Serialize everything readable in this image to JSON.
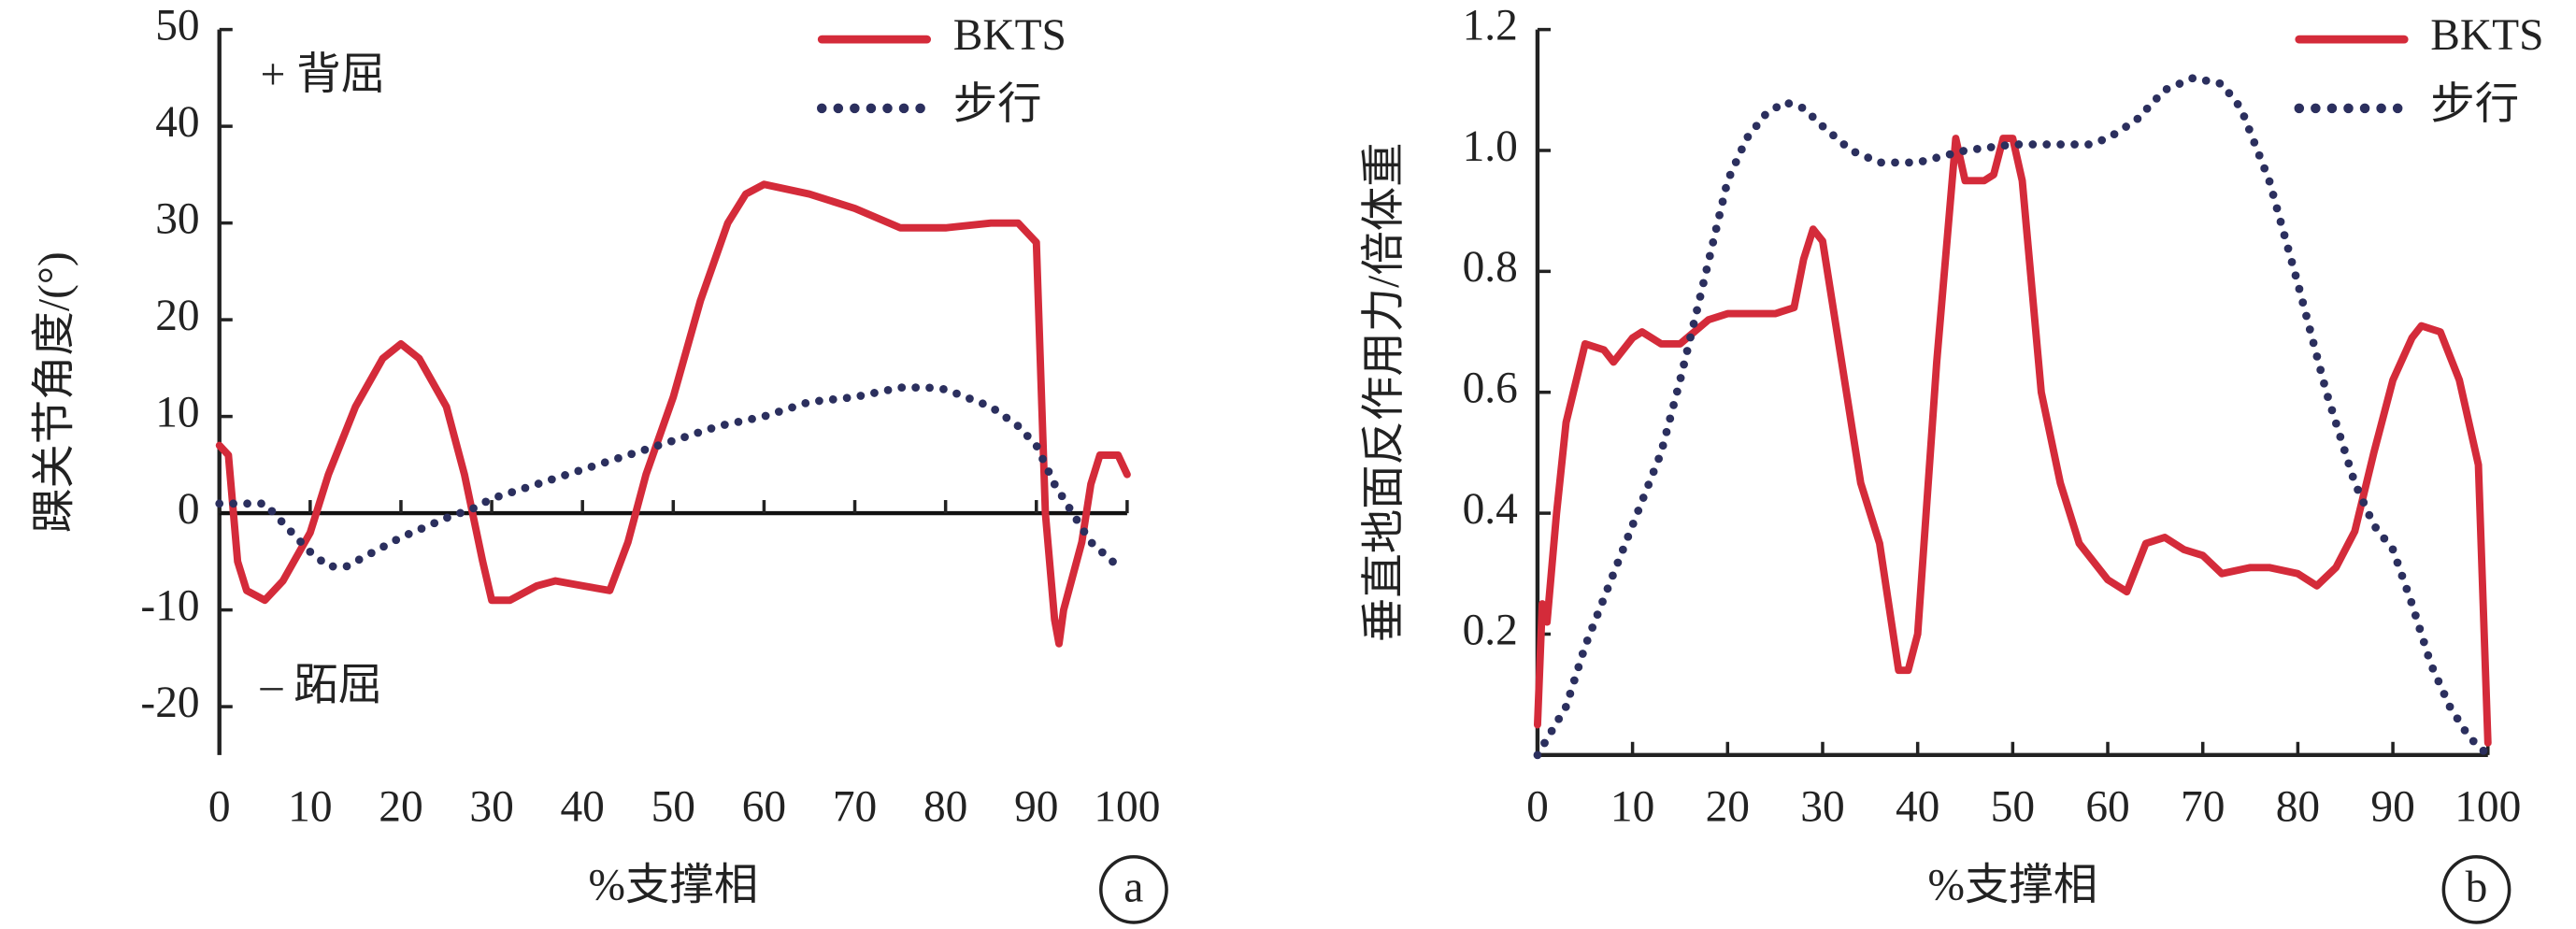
{
  "chart_data": [
    {
      "type": "line",
      "panel_label": "a",
      "x_label": "%支撑相",
      "y_label": "踝关节角度/(°)",
      "annotations": [
        "+ 背屈",
        "– 跖屈"
      ],
      "xlim": [
        0,
        100
      ],
      "xticks": [
        0,
        10,
        20,
        30,
        40,
        50,
        60,
        70,
        80,
        90,
        100
      ],
      "ylim": [
        -25,
        50
      ],
      "yticks": [
        -20,
        -10,
        0,
        10,
        20,
        30,
        40,
        50
      ],
      "zero_line": true,
      "series": [
        {
          "name": "BKTS",
          "color": "#d42b3a",
          "style": "solid",
          "x": [
            0,
            1,
            2,
            3,
            5,
            7,
            10,
            12,
            15,
            18,
            20,
            22,
            25,
            27,
            29,
            30,
            32,
            35,
            37,
            40,
            43,
            45,
            47,
            50,
            53,
            56,
            58,
            60,
            65,
            70,
            75,
            80,
            85,
            88,
            90,
            91,
            92,
            92.5,
            93,
            95,
            96,
            97,
            99,
            100
          ],
          "values": [
            7,
            6,
            -5,
            -8,
            -9,
            -7,
            -2,
            4,
            11,
            16,
            17.5,
            16,
            11,
            4,
            -5,
            -9,
            -9,
            -7.5,
            -7,
            -7.5,
            -8,
            -3,
            4,
            12,
            22,
            30,
            33,
            34,
            33,
            31.5,
            29.5,
            29.5,
            30,
            30,
            28,
            0,
            -11,
            -13.5,
            -10,
            -3,
            3,
            6,
            6,
            4
          ]
        },
        {
          "name": "步行",
          "color": "#2b2f5e",
          "style": "dotted",
          "x": [
            0,
            3,
            5,
            8,
            10,
            12,
            14,
            17,
            20,
            25,
            28,
            30,
            35,
            40,
            45,
            50,
            55,
            60,
            65,
            70,
            75,
            78,
            80,
            85,
            88,
            90,
            92,
            94,
            96,
            99
          ],
          "values": [
            1,
            1,
            1,
            -2,
            -4,
            -5.5,
            -5.5,
            -4,
            -2.5,
            -0.5,
            0.5,
            1.5,
            3,
            4.5,
            6,
            7.5,
            9,
            10,
            11.5,
            12,
            13,
            13,
            12.8,
            11,
            9,
            7,
            3,
            0,
            -3,
            -5.5
          ]
        }
      ]
    },
    {
      "type": "line",
      "panel_label": "b",
      "x_label": "%支撑相",
      "y_label": "垂直地面反作用力/倍体重",
      "xlim": [
        0,
        100
      ],
      "xticks": [
        0,
        10,
        20,
        30,
        40,
        50,
        60,
        70,
        80,
        90,
        100
      ],
      "ylim": [
        0,
        1.2
      ],
      "yticks": [
        0.2,
        0.4,
        0.6,
        0.8,
        {
          "value": 1,
          "label": "1.0"
        },
        1.2
      ],
      "zero_line": false,
      "series": [
        {
          "name": "BKTS",
          "color": "#d42b3a",
          "style": "solid",
          "x": [
            0,
            0.5,
            1,
            2,
            3,
            5,
            7,
            8,
            10,
            11,
            13,
            15,
            18,
            20,
            25,
            27,
            28,
            29,
            30,
            32,
            34,
            36,
            38,
            39,
            40,
            42,
            44,
            45,
            47,
            48,
            49,
            50,
            51,
            53,
            55,
            57,
            60,
            62,
            64,
            66,
            68,
            70,
            72,
            75,
            77,
            80,
            82,
            84,
            86,
            88,
            90,
            92,
            93,
            95,
            97,
            99,
            100
          ],
          "values": [
            0.05,
            0.25,
            0.22,
            0.4,
            0.55,
            0.68,
            0.67,
            0.65,
            0.69,
            0.7,
            0.68,
            0.68,
            0.72,
            0.73,
            0.73,
            0.74,
            0.82,
            0.87,
            0.85,
            0.65,
            0.45,
            0.35,
            0.14,
            0.14,
            0.2,
            0.65,
            1.02,
            0.95,
            0.95,
            0.96,
            1.02,
            1.02,
            0.95,
            0.6,
            0.45,
            0.35,
            0.29,
            0.27,
            0.35,
            0.36,
            0.34,
            0.33,
            0.3,
            0.31,
            0.31,
            0.3,
            0.28,
            0.31,
            0.37,
            0.5,
            0.62,
            0.69,
            0.71,
            0.7,
            0.62,
            0.48,
            0.02
          ]
        },
        {
          "name": "步行",
          "color": "#2b2f5e",
          "style": "dotted",
          "x": [
            0,
            3,
            5,
            8,
            10,
            13,
            15,
            17,
            20,
            22,
            24,
            26,
            28,
            30,
            33,
            36,
            40,
            45,
            50,
            55,
            58,
            60,
            63,
            66,
            69,
            72,
            74,
            77,
            80,
            83,
            86,
            88,
            90,
            92,
            94,
            96,
            98,
            100
          ],
          "values": [
            0,
            0.08,
            0.18,
            0.3,
            0.38,
            0.5,
            0.62,
            0.75,
            0.95,
            1.02,
            1.06,
            1.08,
            1.07,
            1.04,
            1,
            0.98,
            0.98,
            1,
            1.01,
            1.01,
            1.01,
            1.02,
            1.05,
            1.1,
            1.12,
            1.11,
            1.07,
            0.95,
            0.78,
            0.6,
            0.45,
            0.38,
            0.34,
            0.25,
            0.15,
            0.08,
            0.03,
            0
          ]
        }
      ]
    }
  ]
}
